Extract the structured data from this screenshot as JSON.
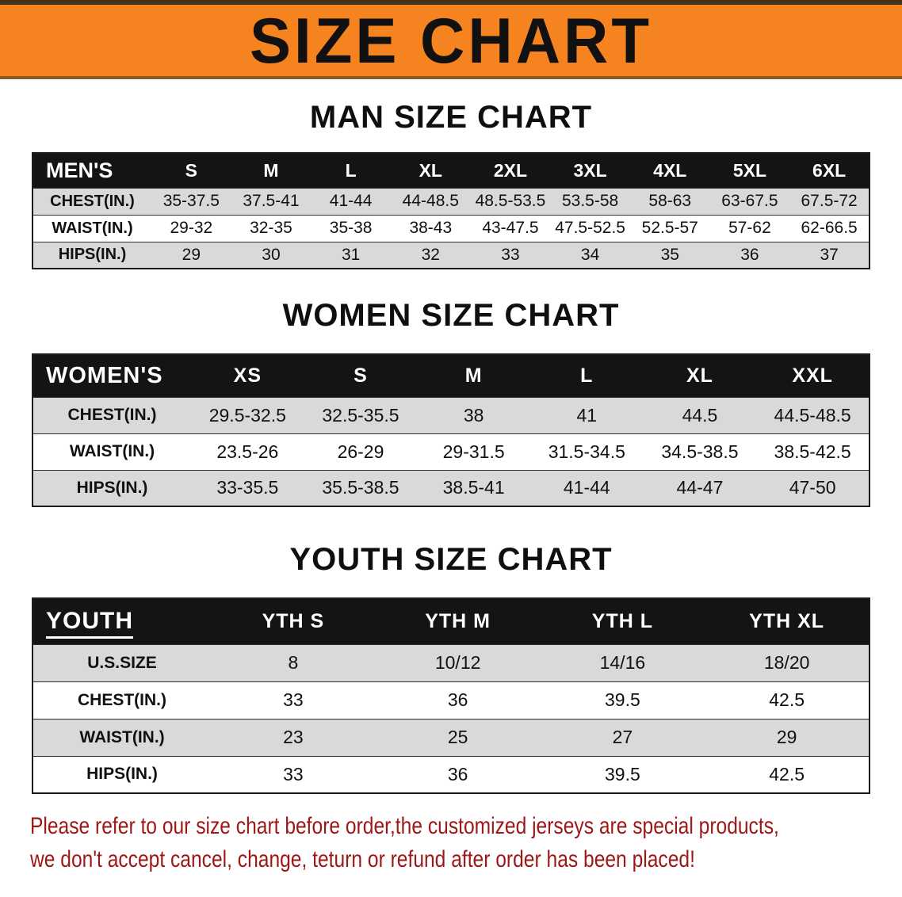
{
  "banner": {
    "title": "SIZE CHART"
  },
  "colors": {
    "banner_bg": "#f5831f",
    "banner_edge_top": "#45301a",
    "banner_edge_bottom": "#8a5a1e",
    "table_header_bg": "#141414",
    "row_shade": "#d9d9d9",
    "note_text": "#9e1717"
  },
  "men": {
    "heading": "MAN SIZE CHART",
    "table": {
      "label": "MEN'S",
      "columns": [
        "S",
        "M",
        "L",
        "XL",
        "2XL",
        "3XL",
        "4XL",
        "5XL",
        "6XL"
      ],
      "rows": [
        {
          "label": "CHEST(IN.)",
          "values": [
            "35-37.5",
            "37.5-41",
            "41-44",
            "44-48.5",
            "48.5-53.5",
            "53.5-58",
            "58-63",
            "63-67.5",
            "67.5-72"
          ]
        },
        {
          "label": "WAIST(IN.)",
          "values": [
            "29-32",
            "32-35",
            "35-38",
            "38-43",
            "43-47.5",
            "47.5-52.5",
            "52.5-57",
            "57-62",
            "62-66.5"
          ]
        },
        {
          "label": "HIPS(IN.)",
          "values": [
            "29",
            "30",
            "31",
            "32",
            "33",
            "34",
            "35",
            "36",
            "37"
          ]
        }
      ]
    }
  },
  "women": {
    "heading": "WOMEN SIZE CHART",
    "table": {
      "label": "WOMEN'S",
      "columns": [
        "XS",
        "S",
        "M",
        "L",
        "XL",
        "XXL"
      ],
      "rows": [
        {
          "label": "CHEST(IN.)",
          "values": [
            "29.5-32.5",
            "32.5-35.5",
            "38",
            "41",
            "44.5",
            "44.5-48.5"
          ]
        },
        {
          "label": "WAIST(IN.)",
          "values": [
            "23.5-26",
            "26-29",
            "29-31.5",
            "31.5-34.5",
            "34.5-38.5",
            "38.5-42.5"
          ]
        },
        {
          "label": "HIPS(IN.)",
          "values": [
            "33-35.5",
            "35.5-38.5",
            "38.5-41",
            "41-44",
            "44-47",
            "47-50"
          ]
        }
      ]
    }
  },
  "youth": {
    "heading": "YOUTH SIZE CHART",
    "table": {
      "label": "YOUTH",
      "columns": [
        "YTH S",
        "YTH M",
        "YTH L",
        "YTH XL"
      ],
      "rows": [
        {
          "label": "U.S.SIZE",
          "values": [
            "8",
            "10/12",
            "14/16",
            "18/20"
          ]
        },
        {
          "label": "CHEST(IN.)",
          "values": [
            "33",
            "36",
            "39.5",
            "42.5"
          ]
        },
        {
          "label": "WAIST(IN.)",
          "values": [
            "23",
            "25",
            "27",
            "29"
          ]
        },
        {
          "label": "HIPS(IN.)",
          "values": [
            "33",
            "36",
            "39.5",
            "42.5"
          ]
        }
      ]
    }
  },
  "note": {
    "line1": "Please refer to our size chart before order,the customized jerseys are special products,",
    "line2": "we don't accept cancel, change, teturn or refund after order has been placed!"
  }
}
